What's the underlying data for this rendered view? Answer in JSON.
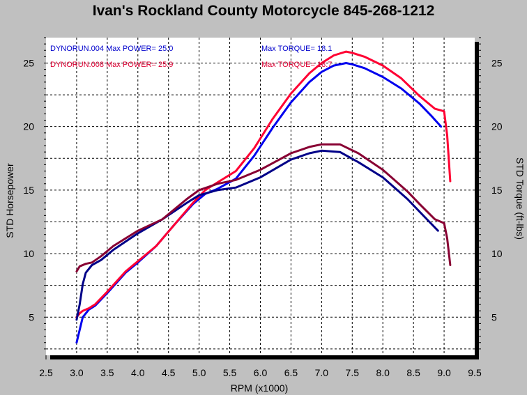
{
  "chart_data": {
    "type": "line",
    "title": "Ivan's Rockland County Motorcycle  845-268-1212",
    "xlabel": "RPM (x1000)",
    "ylabel_left": "STD Horsepower",
    "ylabel_right": "STD Torque (ft-lbs)",
    "xlim": [
      2.5,
      9.5
    ],
    "ylim": [
      2,
      27
    ],
    "x_ticks": [
      "2.5",
      "3.0",
      "3.5",
      "4.0",
      "4.5",
      "5.0",
      "5.5",
      "6.0",
      "6.5",
      "7.0",
      "7.5",
      "8.0",
      "8.5",
      "9.0",
      "9.5"
    ],
    "y_ticks": [
      "5",
      "10",
      "15",
      "20",
      "25"
    ],
    "grid": true,
    "legend": [
      {
        "run": "DYNORUN.004",
        "power_label": "Max POWER= 25.0",
        "torque_label": "Max TORQUE= 18.1",
        "color": "#0000cc"
      },
      {
        "run": "DYNORUN.008",
        "power_label": "Max POWER= 25.9",
        "torque_label": "Max TORQUE= 18.7",
        "color": "#dd0033"
      }
    ],
    "series": [
      {
        "name": "DYNORUN.004 Power",
        "color": "#0000ee",
        "x": [
          3.0,
          3.05,
          3.1,
          3.2,
          3.3,
          3.5,
          3.8,
          4.0,
          4.3,
          4.6,
          4.9,
          5.1,
          5.3,
          5.6,
          5.9,
          6.2,
          6.5,
          6.8,
          7.0,
          7.2,
          7.4,
          7.5,
          7.7,
          8.0,
          8.3,
          8.6,
          8.8,
          8.95
        ],
        "y": [
          3.0,
          4.0,
          5.0,
          5.6,
          5.9,
          6.9,
          8.5,
          9.3,
          10.6,
          12.3,
          13.9,
          14.7,
          15.1,
          15.9,
          17.7,
          19.9,
          21.9,
          23.5,
          24.3,
          24.8,
          25.0,
          24.9,
          24.6,
          23.9,
          23.0,
          21.8,
          20.8,
          20.0
        ]
      },
      {
        "name": "DYNORUN.008 Power",
        "color": "#ff0033",
        "x": [
          3.0,
          3.05,
          3.1,
          3.2,
          3.3,
          3.5,
          3.8,
          4.0,
          4.3,
          4.6,
          4.9,
          5.1,
          5.3,
          5.6,
          5.9,
          6.2,
          6.5,
          6.8,
          7.0,
          7.2,
          7.4,
          7.5,
          7.7,
          8.0,
          8.3,
          8.6,
          8.85,
          9.0,
          9.05,
          9.1
        ],
        "y": [
          5.0,
          5.3,
          5.5,
          5.7,
          6.0,
          7.0,
          8.6,
          9.4,
          10.6,
          12.3,
          14.0,
          15.0,
          15.6,
          16.5,
          18.3,
          20.6,
          22.6,
          24.2,
          25.0,
          25.6,
          25.9,
          25.8,
          25.5,
          24.8,
          23.8,
          22.4,
          21.4,
          21.2,
          19.3,
          15.7
        ]
      },
      {
        "name": "DYNORUN.004 Torque",
        "color": "#000088",
        "x": [
          3.0,
          3.05,
          3.1,
          3.15,
          3.25,
          3.4,
          3.6,
          4.0,
          4.4,
          4.8,
          5.0,
          5.3,
          5.6,
          6.0,
          6.5,
          6.8,
          7.0,
          7.3,
          7.6,
          8.0,
          8.4,
          8.6,
          8.9
        ],
        "y": [
          4.8,
          6.0,
          7.6,
          8.5,
          9.1,
          9.5,
          10.3,
          11.6,
          12.7,
          14.0,
          14.6,
          15.0,
          15.2,
          16.0,
          17.4,
          17.9,
          18.1,
          18.0,
          17.2,
          16.0,
          14.3,
          13.3,
          11.8
        ]
      },
      {
        "name": "DYNORUN.008 Torque",
        "color": "#880033",
        "x": [
          3.0,
          3.05,
          3.15,
          3.25,
          3.4,
          3.6,
          4.0,
          4.4,
          4.8,
          5.0,
          5.3,
          5.6,
          6.0,
          6.5,
          6.8,
          7.0,
          7.3,
          7.6,
          8.0,
          8.4,
          8.6,
          8.85,
          9.0,
          9.05,
          9.1
        ],
        "y": [
          8.6,
          9.0,
          9.2,
          9.3,
          9.8,
          10.6,
          11.8,
          12.7,
          14.3,
          15.0,
          15.5,
          15.8,
          16.6,
          17.9,
          18.4,
          18.6,
          18.6,
          17.9,
          16.6,
          14.9,
          13.9,
          12.7,
          12.4,
          11.2,
          9.1
        ]
      }
    ]
  }
}
